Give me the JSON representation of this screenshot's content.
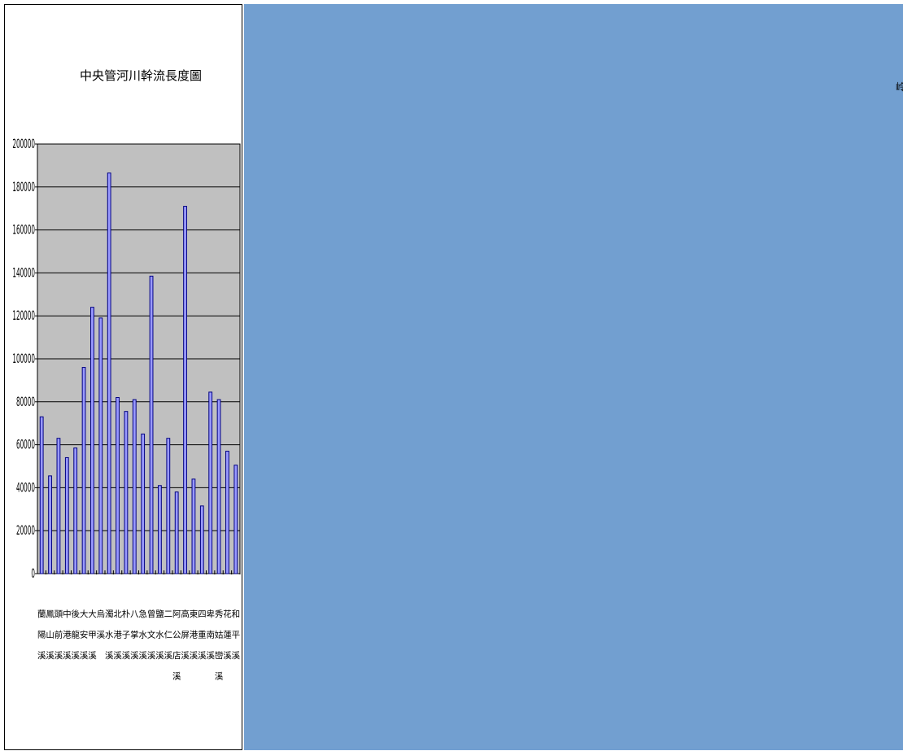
{
  "page": {
    "background_color": "#729fd0",
    "edge_glyph": "岭"
  },
  "chart_data": {
    "type": "bar",
    "title": "中央管河川幹流長度圖",
    "xlabel": "",
    "ylabel": "",
    "ylim": [
      0,
      200000
    ],
    "yticks": [
      0,
      20000,
      40000,
      60000,
      80000,
      100000,
      120000,
      140000,
      160000,
      180000,
      200000
    ],
    "grid": true,
    "legend": "none",
    "plot_background": "#c0c0c0",
    "bar_color": "#9999ff",
    "categories": [
      "蘭陽溪",
      "鳳山溪",
      "頭前溪",
      "中港溪",
      "後龍溪",
      "大安溪",
      "大甲溪",
      "烏溪",
      "濁水溪",
      "北港溪",
      "朴子溪",
      "八掌溪",
      "急水溪",
      "曾文溪",
      "鹽水溪",
      "二仁溪",
      "阿公店溪",
      "高屏溪",
      "東港溪",
      "四重溪",
      "卑南溪",
      "秀姑巒溪",
      "花蓮溪",
      "和平溪"
    ],
    "values": [
      73000,
      45500,
      63000,
      54000,
      58500,
      96000,
      124000,
      119000,
      186500,
      82000,
      75500,
      81000,
      65000,
      138500,
      41000,
      63000,
      38000,
      171000,
      44000,
      31500,
      84500,
      81000,
      57000,
      50500
    ]
  }
}
